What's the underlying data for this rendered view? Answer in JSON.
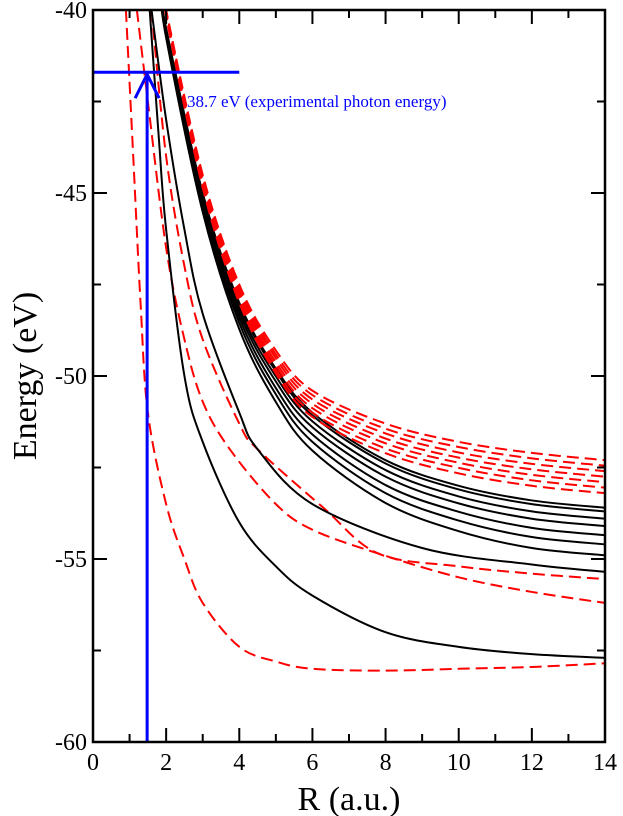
{
  "chart_data": {
    "type": "line",
    "xlabel": "R (a.u.)",
    "ylabel": "Energy (eV)",
    "xlim": [
      0,
      14
    ],
    "ylim": [
      -60,
      -40
    ],
    "xticks": [
      0,
      2,
      4,
      6,
      8,
      10,
      12,
      14
    ],
    "yticks": [
      -60,
      -55,
      -50,
      -45,
      -40
    ],
    "grid": false,
    "colors": {
      "solid": "#000000",
      "dashed": "#ff0000",
      "annotation": "#0000ff"
    },
    "annotation": {
      "text": "38.7 eV  (experimental photon energy)",
      "energy_level": -41.7,
      "level_line_x_range": [
        0,
        4
      ],
      "arrow_x": 1.48,
      "arrow_from": -60,
      "arrow_to": -41.7
    },
    "series": [
      {
        "style": "dashed",
        "points": [
          [
            0.9,
            -40
          ],
          [
            1.1,
            -44
          ],
          [
            1.3,
            -48
          ],
          [
            1.5,
            -51
          ],
          [
            2,
            -53.5
          ],
          [
            2.5,
            -55
          ],
          [
            3,
            -56.2
          ],
          [
            4,
            -57.4
          ],
          [
            5,
            -57.8
          ],
          [
            6,
            -58
          ],
          [
            8,
            -58.05
          ],
          [
            10,
            -58
          ],
          [
            12,
            -57.95
          ],
          [
            14,
            -57.85
          ]
        ]
      },
      {
        "style": "dashed",
        "points": [
          [
            1.2,
            -40
          ],
          [
            1.5,
            -42.5
          ],
          [
            2,
            -46.5
          ],
          [
            2.5,
            -49
          ],
          [
            3,
            -50.7
          ],
          [
            3.74,
            -52
          ],
          [
            5,
            -53.5
          ],
          [
            6,
            -54.2
          ],
          [
            7.8,
            -54.85
          ],
          [
            10,
            -55.5
          ],
          [
            12,
            -55.9
          ],
          [
            14,
            -56.2
          ]
        ]
      },
      {
        "style": "dashed",
        "points": [
          [
            1.6,
            -40
          ],
          [
            2,
            -44
          ],
          [
            2.5,
            -47
          ],
          [
            3,
            -49
          ],
          [
            4,
            -51.3
          ],
          [
            4.5,
            -52
          ],
          [
            6.3,
            -53.6
          ],
          [
            7.8,
            -54.85
          ],
          [
            10,
            -55.2
          ],
          [
            12,
            -55.4
          ],
          [
            14,
            -55.55
          ]
        ]
      },
      {
        "style": "solid",
        "points": [
          [
            1.55,
            -40
          ],
          [
            1.8,
            -43.5
          ],
          [
            2,
            -46
          ],
          [
            2.5,
            -50
          ],
          [
            3,
            -51.8
          ],
          [
            4,
            -54
          ],
          [
            5,
            -55.2
          ],
          [
            6,
            -56
          ],
          [
            8,
            -57
          ],
          [
            10,
            -57.4
          ],
          [
            12,
            -57.6
          ],
          [
            14,
            -57.7
          ]
        ]
      },
      {
        "style": "solid",
        "points": [
          [
            1.6,
            -40
          ],
          [
            2,
            -43
          ],
          [
            2.5,
            -46
          ],
          [
            3,
            -48.3
          ],
          [
            4,
            -51
          ],
          [
            4.5,
            -52
          ],
          [
            6,
            -53.5
          ],
          [
            9,
            -54.7
          ],
          [
            12,
            -55.15
          ],
          [
            14,
            -55.35
          ]
        ]
      },
      {
        "style": "solid",
        "points": [
          [
            1.85,
            -39.5
          ],
          [
            2,
            -40.5
          ],
          [
            3,
            -45
          ],
          [
            4,
            -48
          ],
          [
            5,
            -49.8
          ],
          [
            6,
            -51
          ],
          [
            8,
            -52.3
          ],
          [
            10,
            -53
          ],
          [
            12,
            -53.4
          ],
          [
            14,
            -53.6
          ]
        ]
      },
      {
        "style": "solid",
        "points": [
          [
            1.85,
            -39.5
          ],
          [
            2,
            -40.52
          ],
          [
            3,
            -45.04
          ],
          [
            4,
            -48.06
          ],
          [
            5,
            -49.87
          ],
          [
            6,
            -51.08
          ],
          [
            8,
            -52.39
          ],
          [
            10,
            -53.1
          ],
          [
            12,
            -53.5
          ],
          [
            14,
            -53.7
          ]
        ]
      },
      {
        "style": "solid",
        "points": [
          [
            1.85,
            -39.5
          ],
          [
            2,
            -40.56
          ],
          [
            3,
            -45.12
          ],
          [
            4,
            -48.17
          ],
          [
            5,
            -50.01
          ],
          [
            6,
            -51.24
          ],
          [
            8,
            -52.57
          ],
          [
            10,
            -53.29
          ],
          [
            12,
            -53.7
          ],
          [
            14,
            -53.9
          ]
        ]
      },
      {
        "style": "solid",
        "points": [
          [
            1.85,
            -39.5
          ],
          [
            2,
            -40.6
          ],
          [
            3,
            -45.2
          ],
          [
            4,
            -48.28
          ],
          [
            5,
            -50.15
          ],
          [
            6,
            -51.4
          ],
          [
            8,
            -52.75
          ],
          [
            10,
            -53.48
          ],
          [
            12,
            -53.9
          ],
          [
            14,
            -54.1
          ]
        ]
      },
      {
        "style": "solid",
        "points": [
          [
            1.85,
            -39.5
          ],
          [
            2,
            -40.65
          ],
          [
            3,
            -45.3
          ],
          [
            4,
            -48.41
          ],
          [
            5,
            -50.33
          ],
          [
            6,
            -51.6
          ],
          [
            8,
            -52.98
          ],
          [
            10,
            -53.71
          ],
          [
            12,
            -54.15
          ],
          [
            14,
            -54.35
          ]
        ]
      },
      {
        "style": "solid",
        "points": [
          [
            1.85,
            -39.5
          ],
          [
            2,
            -40.7
          ],
          [
            3,
            -45.4
          ],
          [
            4,
            -48.55
          ],
          [
            5,
            -50.5
          ],
          [
            6,
            -51.8
          ],
          [
            8,
            -53.2
          ],
          [
            10,
            -53.95
          ],
          [
            12,
            -54.4
          ],
          [
            14,
            -54.6
          ]
        ]
      },
      {
        "style": "solid",
        "points": [
          [
            1.85,
            -39.5
          ],
          [
            2,
            -40.76
          ],
          [
            3,
            -45.52
          ],
          [
            4,
            -48.72
          ],
          [
            5,
            -50.71
          ],
          [
            6,
            -52.04
          ],
          [
            8,
            -53.47
          ],
          [
            10,
            -54.24
          ],
          [
            12,
            -54.7
          ],
          [
            14,
            -54.9
          ]
        ]
      },
      {
        "style": "dashed",
        "points": [
          [
            1.95,
            -39.5
          ],
          [
            2,
            -40
          ],
          [
            3,
            -44.5
          ],
          [
            4,
            -47.5
          ],
          [
            5,
            -49.3
          ],
          [
            6,
            -50.4
          ],
          [
            8,
            -51.3
          ],
          [
            10,
            -51.8
          ],
          [
            12,
            -52.1
          ],
          [
            14,
            -52.3
          ]
        ]
      },
      {
        "style": "dashed",
        "points": [
          [
            1.95,
            -39.5
          ],
          [
            2,
            -40.03
          ],
          [
            3,
            -44.56
          ],
          [
            4,
            -47.58
          ],
          [
            5,
            -49.41
          ],
          [
            6,
            -50.52
          ],
          [
            8,
            -51.44
          ],
          [
            10,
            -51.94
          ],
          [
            12,
            -52.25
          ],
          [
            14,
            -52.45
          ]
        ]
      },
      {
        "style": "dashed",
        "points": [
          [
            1.95,
            -39.5
          ],
          [
            2,
            -40.06
          ],
          [
            3,
            -44.62
          ],
          [
            4,
            -47.67
          ],
          [
            5,
            -49.51
          ],
          [
            6,
            -50.64
          ],
          [
            8,
            -51.57
          ],
          [
            10,
            -52.09
          ],
          [
            12,
            -52.4
          ],
          [
            14,
            -52.6
          ]
        ]
      },
      {
        "style": "dashed",
        "points": [
          [
            1.95,
            -39.5
          ],
          [
            2,
            -40.09
          ],
          [
            3,
            -44.68
          ],
          [
            4,
            -47.75
          ],
          [
            5,
            -49.62
          ],
          [
            6,
            -50.76
          ],
          [
            8,
            -51.71
          ],
          [
            10,
            -52.23
          ],
          [
            12,
            -52.55
          ],
          [
            14,
            -52.75
          ]
        ]
      },
      {
        "style": "dashed",
        "points": [
          [
            1.95,
            -39.5
          ],
          [
            2,
            -40.12
          ],
          [
            3,
            -44.74
          ],
          [
            4,
            -47.83
          ],
          [
            5,
            -49.72
          ],
          [
            6,
            -50.88
          ],
          [
            8,
            -51.84
          ],
          [
            10,
            -52.37
          ],
          [
            12,
            -52.7
          ],
          [
            14,
            -52.9
          ]
        ]
      },
      {
        "style": "dashed",
        "points": [
          [
            1.95,
            -39.5
          ],
          [
            2,
            -40.15
          ],
          [
            3,
            -44.8
          ],
          [
            4,
            -47.91
          ],
          [
            5,
            -49.83
          ],
          [
            6,
            -51
          ],
          [
            8,
            -51.98
          ],
          [
            10,
            -52.51
          ],
          [
            12,
            -52.85
          ],
          [
            14,
            -53.05
          ]
        ]
      },
      {
        "style": "dashed",
        "points": [
          [
            1.95,
            -39.5
          ],
          [
            2,
            -40.18
          ],
          [
            3,
            -44.86
          ],
          [
            4,
            -48
          ],
          [
            5,
            -49.93
          ],
          [
            6,
            -51.12
          ],
          [
            8,
            -52.11
          ],
          [
            10,
            -52.66
          ],
          [
            12,
            -53
          ],
          [
            14,
            -53.2
          ]
        ]
      }
    ]
  }
}
